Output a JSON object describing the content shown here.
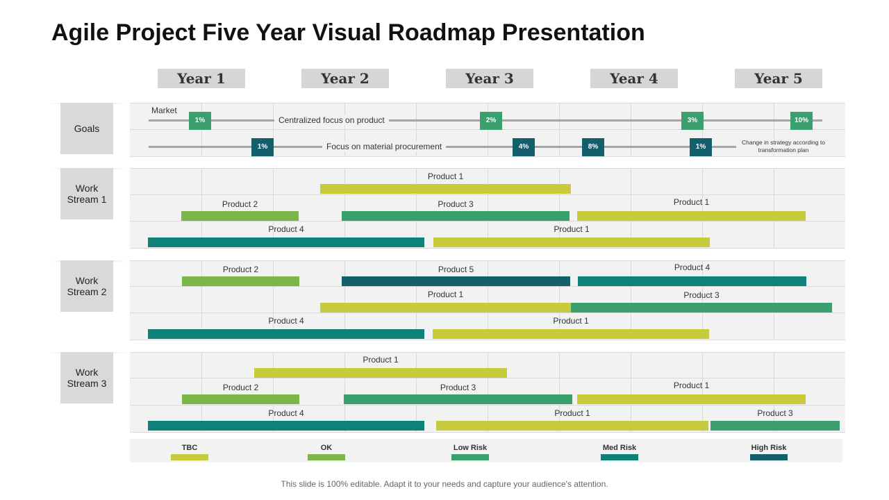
{
  "title": "Agile Project Five Year Visual Roadmap Presentation",
  "years": [
    "Year 1",
    "Year 2",
    "Year 3",
    "Year 4",
    "Year 5"
  ],
  "colors": {
    "tbc": "#c8cb3c",
    "ok": "#7ab648",
    "low_risk": "#3aa06e",
    "med_risk": "#0e8278",
    "high_risk": "#135f6c",
    "goal_green": "#3aa06e",
    "goal_teal": "#135f6c"
  },
  "goals": {
    "label": "Goals",
    "market_label": "Market",
    "line1_text": "Centralized focus on product",
    "line1_badges": [
      "1%",
      "2%",
      "3%",
      "10%"
    ],
    "line2_text": "Focus on material procurement",
    "line2_badges": [
      "1%",
      "4%",
      "8%",
      "1%"
    ],
    "note": "Change in strategy according to transformation plan"
  },
  "streams": [
    {
      "label": "Work Stream 1",
      "bars": [
        {
          "label": "Product 1",
          "status": "tbc"
        },
        {
          "label": "Product 2",
          "status": "ok"
        },
        {
          "label": "Product 3",
          "status": "low_risk"
        },
        {
          "label": "Product 1",
          "status": "tbc"
        },
        {
          "label": "Product 4",
          "status": "med_risk"
        },
        {
          "label": "Product 1",
          "status": "tbc"
        }
      ]
    },
    {
      "label": "Work Stream 2",
      "bars": [
        {
          "label": "Product 2",
          "status": "ok"
        },
        {
          "label": "Product 5",
          "status": "high_risk"
        },
        {
          "label": "Product 4",
          "status": "med_risk"
        },
        {
          "label": "Product 1",
          "status": "tbc"
        },
        {
          "label": "Product 3",
          "status": "low_risk"
        },
        {
          "label": "Product 4",
          "status": "med_risk"
        },
        {
          "label": "Product 1",
          "status": "tbc"
        }
      ]
    },
    {
      "label": "Work Stream 3",
      "bars": [
        {
          "label": "Product 1",
          "status": "tbc"
        },
        {
          "label": "Product 2",
          "status": "ok"
        },
        {
          "label": "Product 3",
          "status": "low_risk"
        },
        {
          "label": "Product 1",
          "status": "tbc"
        },
        {
          "label": "Product 4",
          "status": "med_risk"
        },
        {
          "label": "Product 1",
          "status": "tbc"
        },
        {
          "label": "Product 3",
          "status": "low_risk"
        }
      ]
    }
  ],
  "legend": [
    {
      "label": "TBC",
      "status": "tbc"
    },
    {
      "label": "OK",
      "status": "ok"
    },
    {
      "label": "Low Risk",
      "status": "low_risk"
    },
    {
      "label": "Med Risk",
      "status": "med_risk"
    },
    {
      "label": "High  Risk",
      "status": "high_risk"
    }
  ],
  "footer": "This slide is 100% editable. Adapt it to your needs and capture your audience's attention."
}
